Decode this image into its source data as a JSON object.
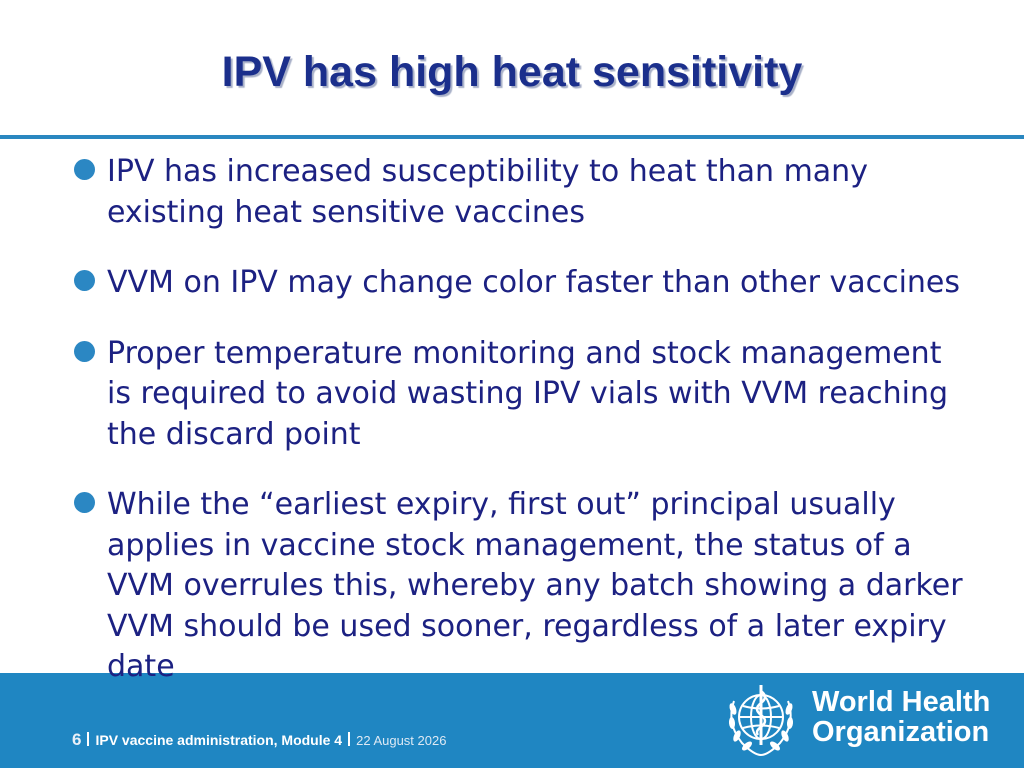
{
  "slide": {
    "title": "IPV has high heat sensitivity",
    "bullets": [
      "IPV has increased susceptibility to heat than many existing heat sensitive vaccines",
      "VVM on IPV may change color faster than other vaccines",
      "Proper temperature monitoring and stock management is required to avoid wasting IPV vials with VVM reaching the discard point",
      "While the “earliest expiry, first out” principal usually applies in vaccine stock management, the status of a VVM overrules this, whereby any batch showing a darker VVM should be used sooner, regardless of a later expiry date"
    ]
  },
  "footer": {
    "page_number": "6",
    "module": "IPV vaccine administration, Module 4",
    "date": "22 August 2026",
    "org_line1": "World Health",
    "org_line2": "Organization"
  },
  "colors": {
    "title": "#1b2f8c",
    "body_text": "#1c2182",
    "accent": "#2a87c0",
    "footer_band": "#1f86c2"
  },
  "icons": {
    "logo": "who-emblem-icon"
  }
}
